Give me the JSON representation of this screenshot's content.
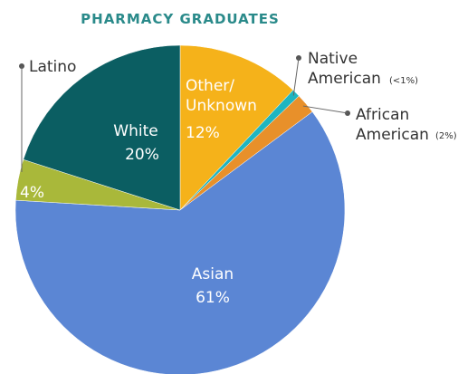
{
  "chart_data": {
    "type": "pie",
    "title": "PHARMACY GRADUATES",
    "categories": [
      "Other/ Unknown",
      "Native American",
      "African American",
      "Asian",
      "Latino",
      "White"
    ],
    "values": [
      12,
      0.8,
      2,
      61,
      4,
      20
    ],
    "value_labels": [
      "12%",
      "(<1%)",
      "(2%)",
      "61%",
      "4%",
      "20%"
    ],
    "colors": [
      "#f5b21a",
      "#1fb5c0",
      "#e8902a",
      "#5b86d4",
      "#a9b83a",
      "#0b5e62"
    ]
  }
}
